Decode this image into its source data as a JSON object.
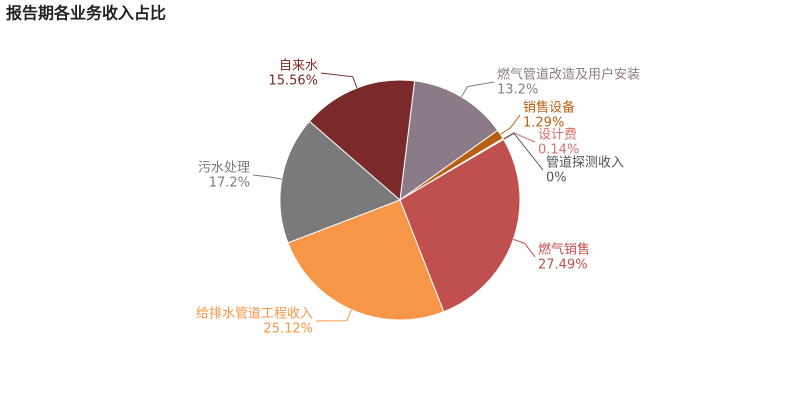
{
  "chart_data": {
    "type": "pie",
    "title": "报告期各业务收入占比",
    "categories": [
      "燃气管道改造及用户安装",
      "销售设备",
      "设计费",
      "管道探测收入",
      "燃气销售",
      "给排水管道工程收入",
      "污水处理",
      "自来水"
    ],
    "values": [
      13.2,
      1.29,
      0.14,
      0,
      27.49,
      25.12,
      17.2,
      15.56
    ],
    "value_labels": [
      "13.2%",
      "1.29%",
      "0.14%",
      "0%",
      "27.49%",
      "25.12%",
      "17.2%",
      "15.56%"
    ],
    "colors": [
      "#8b7b89",
      "#b8600f",
      "#d86f6a",
      "#555555",
      "#c0504d",
      "#f79646",
      "#7a7a7a",
      "#7b2a2a"
    ]
  }
}
